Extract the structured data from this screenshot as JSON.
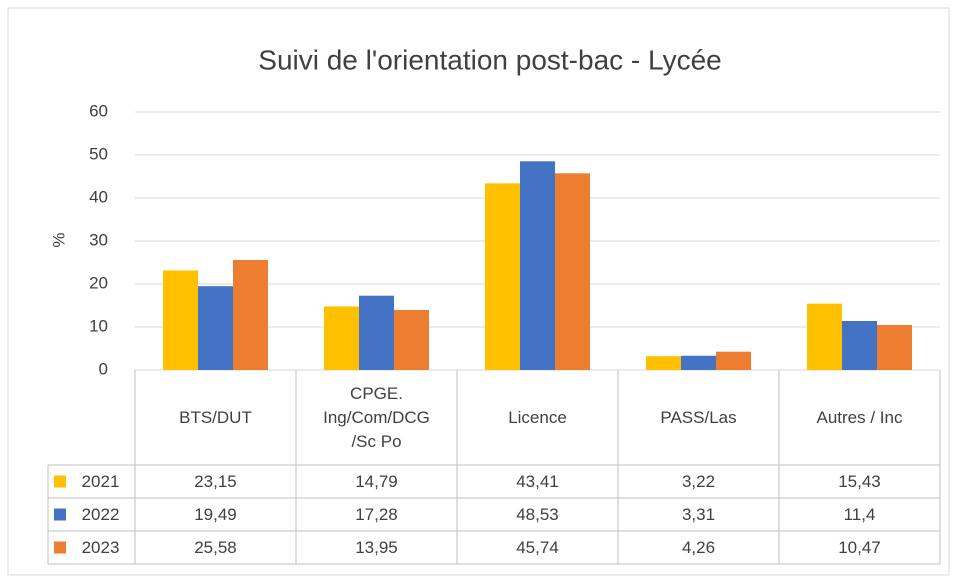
{
  "chart_data": {
    "type": "bar",
    "title": "Suivi de l'orientation post-bac - Lycée",
    "y_label": "%",
    "categories": [
      "BTS/DUT",
      "CPGE.\nIng/Com/DCG\n/Sc Po",
      "Licence",
      "PASS/Las",
      "Autres / Inc"
    ],
    "series": [
      {
        "name": "2021",
        "color": "#FFC000",
        "values": [
          23.15,
          14.79,
          43.41,
          3.22,
          15.43
        ],
        "value_labels": [
          "23,15",
          "14,79",
          "43,41",
          "3,22",
          "15,43"
        ]
      },
      {
        "name": "2022",
        "color": "#4472C4",
        "values": [
          19.49,
          17.28,
          48.53,
          3.31,
          11.4
        ],
        "value_labels": [
          "19,49",
          "17,28",
          "48,53",
          "3,31",
          "11,4"
        ]
      },
      {
        "name": "2023",
        "color": "#ED7D31",
        "values": [
          25.58,
          13.95,
          45.74,
          4.26,
          10.47
        ],
        "value_labels": [
          "25,58",
          "13,95",
          "45,74",
          "4,26",
          "10,47"
        ]
      }
    ],
    "ylim": [
      0,
      60
    ],
    "yticks": [
      0,
      10,
      20,
      30,
      40,
      50,
      60
    ],
    "grid": true
  }
}
